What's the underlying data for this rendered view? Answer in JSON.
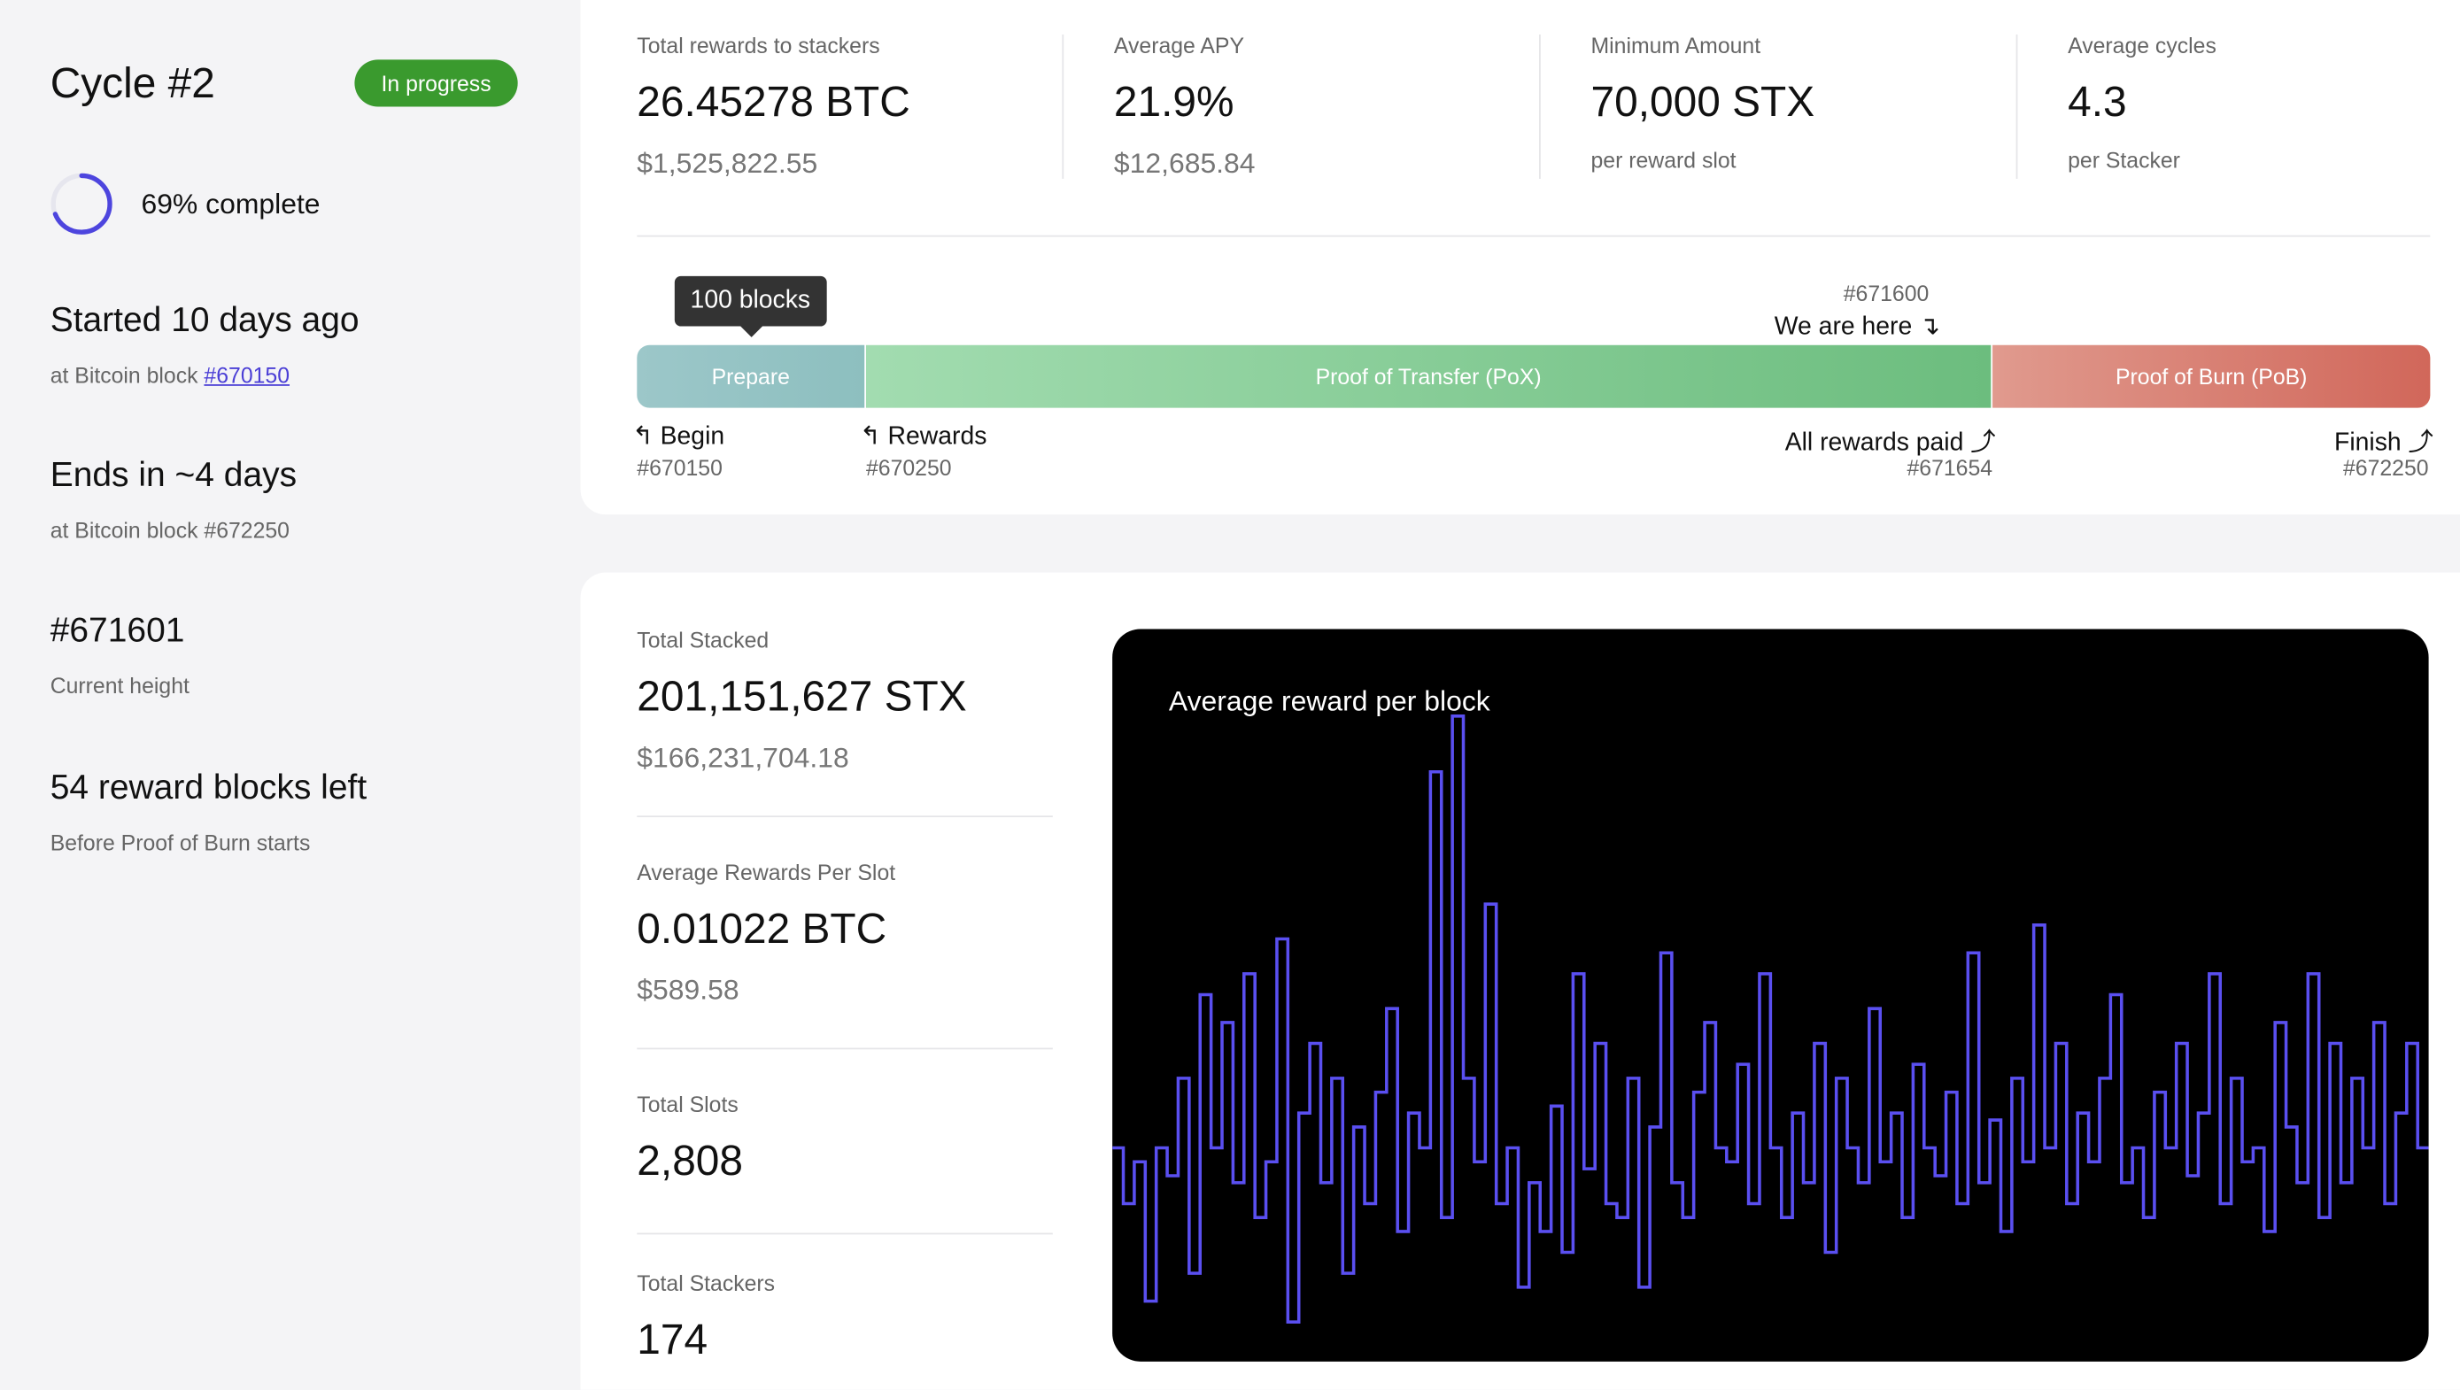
{
  "sidebar": {
    "title": "Cycle #2",
    "status": "In progress",
    "progress": {
      "value": 69,
      "label": "69% complete"
    },
    "items": [
      {
        "heading": "Started 10 days ago",
        "prefix": "at Bitcoin block",
        "link": "#670150"
      },
      {
        "heading": "Ends in ~4 days",
        "sub": "at Bitcoin block #672250"
      },
      {
        "heading": "#671601",
        "sub": "Current height"
      },
      {
        "heading": "54 reward blocks left",
        "sub": "Before Proof of Burn starts"
      }
    ]
  },
  "stats": [
    {
      "label": "Total rewards to stackers",
      "value": "26.45278 BTC",
      "sub": "$1,525,822.55"
    },
    {
      "label": "Average APY",
      "value": "21.9%",
      "sub": "$12,685.84"
    },
    {
      "label": "Minimum Amount",
      "value": "70,000 STX",
      "sub": "per reward slot"
    },
    {
      "label": "Average cycles",
      "value": "4.3",
      "sub": "per Stacker"
    }
  ],
  "timeline": {
    "tooltip": "100 blocks",
    "current": {
      "block": "#671600",
      "label": "We are here"
    },
    "segments": [
      "Prepare",
      "Proof of Transfer (PoX)",
      "Proof of Burn (PoB)"
    ],
    "markers": [
      {
        "label": "Begin",
        "block": "#670150"
      },
      {
        "label": "Rewards",
        "block": "#670250"
      },
      {
        "label": "All rewards paid",
        "block": "#671654"
      },
      {
        "label": "Finish",
        "block": "#672250"
      }
    ]
  },
  "totals": [
    {
      "label": "Total Stacked",
      "value": "201,151,627 STX",
      "sub": "$166,231,704.18"
    },
    {
      "label": "Average Rewards Per Slot",
      "value": "0.01022 BTC",
      "sub": "$589.58"
    },
    {
      "label": "Total Slots",
      "value": "2,808"
    },
    {
      "label": "Total Stackers",
      "value": "174"
    }
  ],
  "chart_data": {
    "type": "line",
    "title": "Average reward per block",
    "color": "#5a4ff0",
    "ylim": [
      0,
      100
    ],
    "values": [
      30,
      22,
      28,
      8,
      30,
      26,
      40,
      12,
      52,
      30,
      48,
      25,
      55,
      20,
      28,
      60,
      5,
      35,
      45,
      25,
      40,
      12,
      33,
      22,
      38,
      50,
      18,
      35,
      30,
      84,
      20,
      92,
      40,
      28,
      65,
      22,
      30,
      10,
      25,
      18,
      36,
      15,
      55,
      27,
      45,
      22,
      20,
      40,
      10,
      33,
      58,
      25,
      20,
      38,
      48,
      30,
      28,
      42,
      22,
      55,
      30,
      20,
      35,
      25,
      45,
      15,
      40,
      30,
      25,
      50,
      28,
      35,
      20,
      42,
      30,
      26,
      38,
      22,
      58,
      25,
      34,
      18,
      40,
      28,
      62,
      30,
      45,
      22,
      35,
      28,
      40,
      52,
      25,
      30,
      20,
      38,
      30,
      45,
      26,
      35,
      55,
      22,
      40,
      28,
      30,
      18,
      48,
      33,
      25,
      55,
      20,
      45,
      25,
      40,
      30,
      48,
      22,
      35,
      45,
      30
    ]
  }
}
